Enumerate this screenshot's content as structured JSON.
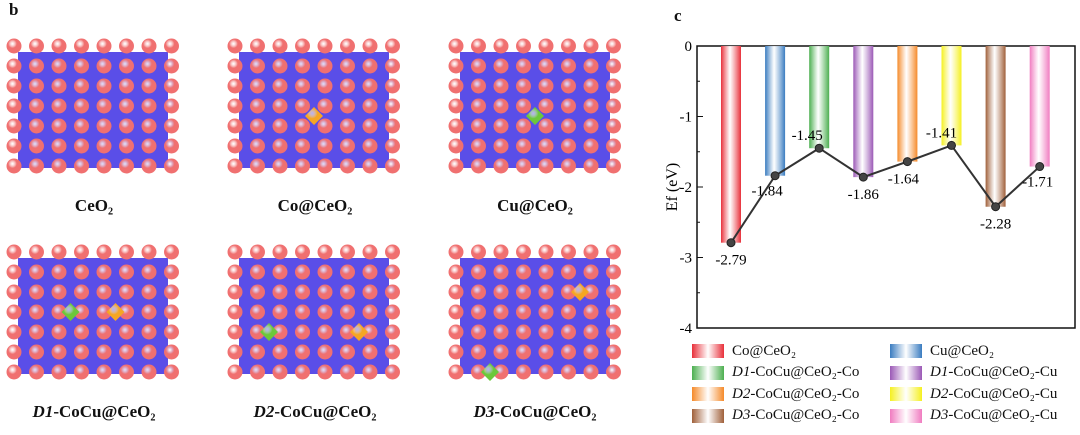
{
  "panel_b": {
    "label": "b",
    "structures": [
      {
        "prefix": "",
        "name": "CeO₂",
        "dopants": []
      },
      {
        "prefix": "",
        "name": "Co@CeO₂",
        "dopants": [
          [
            "Co",
            4,
            3.5
          ]
        ]
      },
      {
        "prefix": "",
        "name": "Cu@CeO₂",
        "dopants": [
          [
            "Cu",
            4,
            3.5
          ]
        ]
      },
      {
        "prefix": "D1",
        "name": "-CoCu@CeO₂",
        "dopants": [
          [
            "Cu",
            3,
            3
          ],
          [
            "Co",
            5,
            3
          ]
        ]
      },
      {
        "prefix": "D2",
        "name": "-CoCu@CeO₂",
        "dopants": [
          [
            "Cu",
            2,
            4
          ],
          [
            "Co",
            6,
            4
          ]
        ]
      },
      {
        "prefix": "D3",
        "name": "-CoCu@CeO₂",
        "dopants": [
          [
            "Co",
            6,
            2
          ],
          [
            "Cu",
            2,
            6
          ]
        ]
      }
    ],
    "colors": {
      "oxygen": "#f07070",
      "cerium": "#5a4ee8",
      "Co": "#f5a623",
      "Cu": "#6cc83a"
    }
  },
  "panel_c": {
    "label": "c"
  },
  "chart_data": {
    "type": "bar",
    "ylabel": "Ef (eV)",
    "ylim": [
      -4,
      0
    ],
    "yticks": [
      "0",
      "-1",
      "-2",
      "-3",
      "-4"
    ],
    "grid": false,
    "legend_position": "bottom",
    "categories": [
      {
        "prefix": "",
        "name": "Co@CeO₂"
      },
      {
        "prefix": "",
        "name": "Cu@CeO₂"
      },
      {
        "prefix": "D1",
        "name": "-CoCu@CeO₂-Co"
      },
      {
        "prefix": "D1",
        "name": "-CoCu@CeO₂-Cu"
      },
      {
        "prefix": "D2",
        "name": "-CoCu@CeO₂-Co"
      },
      {
        "prefix": "D2",
        "name": "-CoCu@CeO₂-Cu"
      },
      {
        "prefix": "D3",
        "name": "-CoCu@CeO₂-Co"
      },
      {
        "prefix": "D3",
        "name": "-CoCu@CeO₂-Cu"
      }
    ],
    "values": [
      -2.79,
      -1.84,
      -1.45,
      -1.86,
      -1.64,
      -1.41,
      -2.28,
      -1.71
    ],
    "value_labels": [
      "-2.79",
      "-1.84",
      "-1.45",
      "-1.86",
      "-1.64",
      "-1.41",
      "-2.28",
      "-1.71"
    ],
    "colors": [
      "#e8303a",
      "#3a7cc0",
      "#4caf50",
      "#9b59b6",
      "#f58a2a",
      "#f5f020",
      "#a0603a",
      "#f07cc0"
    ],
    "line_color": "#333333"
  }
}
